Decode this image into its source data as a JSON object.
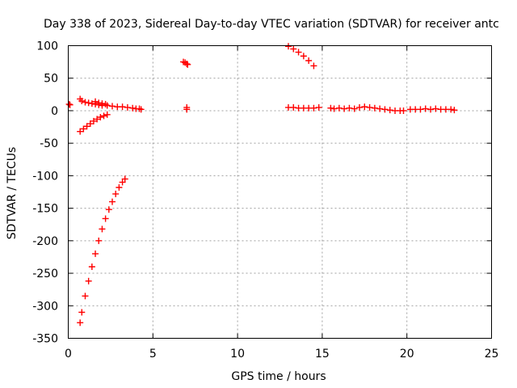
{
  "chart_data": {
    "type": "scatter",
    "title": "Day 338 of 2023, Sidereal Day-to-day VTEC variation (SDTVAR) for receiver antc",
    "xlabel": "GPS time / hours",
    "ylabel": "SDTVAR / TECUs",
    "xlim": [
      0,
      25
    ],
    "ylim": [
      -350,
      100
    ],
    "xticks": [
      0,
      5,
      10,
      15,
      20,
      25
    ],
    "yticks": [
      -350,
      -300,
      -250,
      -200,
      -150,
      -100,
      -50,
      0,
      50,
      100
    ],
    "xtick_labels": [
      "0",
      "5",
      "10",
      "15",
      "20",
      "25"
    ],
    "ytick_labels": [
      "-350",
      "-300",
      "-250",
      "-200",
      "-150",
      "-100",
      "-50",
      "0",
      "50",
      "100"
    ],
    "grid": true,
    "marker": "plus",
    "color": "#ff0000",
    "series": [
      {
        "name": "SDTVAR",
        "x": [
          0.05,
          0.1,
          0.7,
          0.8,
          1.0,
          1.2,
          1.4,
          1.6,
          1.8,
          2.0,
          2.3,
          2.6,
          2.9,
          3.2,
          3.5,
          3.8,
          4.0,
          4.2,
          4.3,
          1.6,
          1.8,
          2.0,
          2.2,
          0.7,
          0.9,
          1.1,
          1.3,
          1.5,
          1.7,
          1.9,
          2.1,
          2.3,
          0.7,
          0.8,
          1.0,
          1.2,
          1.4,
          1.6,
          1.8,
          2.0,
          2.2,
          2.4,
          2.6,
          2.8,
          3.0,
          3.2,
          3.35,
          6.8,
          6.9,
          7.0,
          7.05,
          7.0,
          7.0,
          13.0,
          13.3,
          13.6,
          13.9,
          14.2,
          14.5,
          13.0,
          13.3,
          13.6,
          13.9,
          14.2,
          14.5,
          14.8,
          15.5,
          15.7,
          16.0,
          16.3,
          16.6,
          16.9,
          17.2,
          17.5,
          17.8,
          18.1,
          18.4,
          18.7,
          19.0,
          19.3,
          19.6,
          19.8,
          20.2,
          20.5,
          20.8,
          21.1,
          21.4,
          21.7,
          22.0,
          22.3,
          22.6,
          22.8
        ],
        "y": [
          10,
          9,
          18,
          15,
          13,
          12,
          11,
          10,
          9,
          8,
          8,
          7,
          6,
          6,
          5,
          4,
          3,
          3,
          2,
          14,
          12,
          11,
          10,
          -32,
          -28,
          -24,
          -20,
          -16,
          -13,
          -10,
          -8,
          -6,
          -326,
          -310,
          -285,
          -262,
          -240,
          -220,
          -200,
          -182,
          -166,
          -152,
          -140,
          -128,
          -118,
          -110,
          -105,
          75,
          74,
          72,
          71,
          5,
          2,
          99,
          95,
          90,
          84,
          77,
          69,
          5,
          5,
          4,
          4,
          4,
          4,
          5,
          4,
          3,
          4,
          3,
          4,
          3,
          5,
          6,
          5,
          4,
          3,
          2,
          1,
          0,
          0,
          0,
          2,
          2,
          2,
          3,
          2,
          3,
          2,
          2,
          2,
          1
        ]
      }
    ]
  }
}
